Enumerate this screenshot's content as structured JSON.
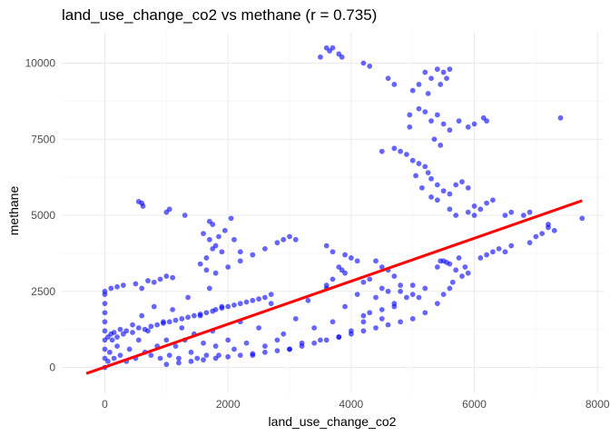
{
  "chart_data": {
    "type": "scatter",
    "title": "land_use_change_co2 vs methane (r = 0.735)",
    "xlabel": "land_use_change_co2",
    "ylabel": "methane",
    "xlim": [
      -700,
      8100
    ],
    "ylim": [
      -850,
      11000
    ],
    "x_ticks": [
      0,
      2000,
      4000,
      6000,
      8000
    ],
    "x_tick_labels": [
      "0",
      "2000",
      "4000",
      "6000",
      "8000"
    ],
    "y_ticks": [
      0,
      2500,
      5000,
      7500,
      10000
    ],
    "y_tick_labels": [
      "0",
      "2500",
      "5000",
      "7500",
      "10000"
    ],
    "grid": true,
    "point_color": "#0000ff",
    "point_opacity": 0.6,
    "trend_color": "#ff0000",
    "trend_line": {
      "x": [
        -300,
        7750
      ],
      "y": [
        -200,
        5480
      ]
    },
    "points": [
      [
        0,
        0
      ],
      [
        0,
        1200
      ],
      [
        0,
        1500
      ],
      [
        0,
        1800
      ],
      [
        0,
        2100
      ],
      [
        0,
        2400
      ],
      [
        0,
        2500
      ],
      [
        0,
        900
      ],
      [
        0,
        600
      ],
      [
        0,
        300
      ],
      [
        50,
        200
      ],
      [
        80,
        500
      ],
      [
        120,
        900
      ],
      [
        150,
        300
      ],
      [
        200,
        700
      ],
      [
        250,
        400
      ],
      [
        300,
        1100
      ],
      [
        350,
        200
      ],
      [
        400,
        600
      ],
      [
        450,
        1400
      ],
      [
        500,
        300
      ],
      [
        550,
        900
      ],
      [
        600,
        1700
      ],
      [
        650,
        500
      ],
      [
        700,
        1200
      ],
      [
        750,
        400
      ],
      [
        800,
        2000
      ],
      [
        850,
        700
      ],
      [
        900,
        300
      ],
      [
        950,
        1500
      ],
      [
        1000,
        900
      ],
      [
        1050,
        400
      ],
      [
        1100,
        1900
      ],
      [
        1150,
        700
      ],
      [
        1200,
        300
      ],
      [
        1250,
        1300
      ],
      [
        1300,
        900
      ],
      [
        1350,
        2300
      ],
      [
        1400,
        500
      ],
      [
        1450,
        1100
      ],
      [
        1500,
        300
      ],
      [
        1550,
        1700
      ],
      [
        1600,
        800
      ],
      [
        1650,
        400
      ],
      [
        1700,
        2600
      ],
      [
        1750,
        1200
      ],
      [
        1800,
        700
      ],
      [
        1850,
        400
      ],
      [
        1900,
        2000
      ],
      [
        2000,
        900
      ],
      [
        2100,
        600
      ],
      [
        2200,
        1500
      ],
      [
        2300,
        800
      ],
      [
        2400,
        400
      ],
      [
        2500,
        1300
      ],
      [
        2600,
        700
      ],
      [
        2700,
        2100
      ],
      [
        2800,
        900
      ],
      [
        2900,
        1100
      ],
      [
        3000,
        600
      ],
      [
        3100,
        1600
      ],
      [
        3200,
        800
      ],
      [
        3300,
        2200
      ],
      [
        3400,
        1300
      ],
      [
        3500,
        900
      ],
      [
        3600,
        2600
      ],
      [
        3700,
        1500
      ],
      [
        3800,
        1000
      ],
      [
        3900,
        2000
      ],
      [
        4000,
        1200
      ],
      [
        4100,
        2400
      ],
      [
        4200,
        1500
      ],
      [
        4300,
        1800
      ],
      [
        4400,
        2300
      ],
      [
        4500,
        1600
      ],
      [
        4600,
        2500
      ],
      [
        4700,
        2000
      ],
      [
        4800,
        2700
      ],
      [
        4900,
        2300
      ],
      [
        5000,
        2700
      ],
      [
        100,
        2600
      ],
      [
        300,
        2700
      ],
      [
        500,
        2750
      ],
      [
        700,
        2850
      ],
      [
        900,
        2900
      ],
      [
        1100,
        2950
      ],
      [
        600,
        2600
      ],
      [
        800,
        2800
      ],
      [
        1000,
        3000
      ],
      [
        200,
        2650
      ],
      [
        50,
        1000
      ],
      [
        100,
        1100
      ],
      [
        150,
        1150
      ],
      [
        200,
        1000
      ],
      [
        250,
        1250
      ],
      [
        350,
        1200
      ],
      [
        450,
        1150
      ],
      [
        550,
        1300
      ],
      [
        650,
        1250
      ],
      [
        750,
        1350
      ],
      [
        850,
        1400
      ],
      [
        950,
        1450
      ],
      [
        1050,
        1500
      ],
      [
        1150,
        1550
      ],
      [
        1250,
        1600
      ],
      [
        1350,
        1650
      ],
      [
        1450,
        1700
      ],
      [
        1550,
        1750
      ],
      [
        1650,
        1800
      ],
      [
        1750,
        1850
      ],
      [
        1800,
        1900
      ],
      [
        1900,
        1950
      ],
      [
        2000,
        2000
      ],
      [
        2100,
        2050
      ],
      [
        2200,
        2100
      ],
      [
        2300,
        2150
      ],
      [
        2400,
        2200
      ],
      [
        2500,
        2250
      ],
      [
        2600,
        2300
      ],
      [
        2700,
        2400
      ],
      [
        1000,
        100
      ],
      [
        1200,
        150
      ],
      [
        1400,
        200
      ],
      [
        1600,
        250
      ],
      [
        1800,
        300
      ],
      [
        2000,
        350
      ],
      [
        2200,
        400
      ],
      [
        2400,
        450
      ],
      [
        2600,
        500
      ],
      [
        2800,
        550
      ],
      [
        3000,
        600
      ],
      [
        3200,
        700
      ],
      [
        3400,
        800
      ],
      [
        3600,
        900
      ],
      [
        3800,
        1000
      ],
      [
        4000,
        1100
      ],
      [
        4200,
        1200
      ],
      [
        4400,
        1300
      ],
      [
        4600,
        1400
      ],
      [
        4800,
        1500
      ],
      [
        5000,
        1600
      ],
      [
        5200,
        1800
      ],
      [
        5400,
        2100
      ],
      [
        5500,
        2400
      ],
      [
        5600,
        2600
      ],
      [
        5650,
        2800
      ],
      [
        4200,
        1700
      ],
      [
        4500,
        1900
      ],
      [
        4700,
        2100
      ],
      [
        5100,
        2300
      ],
      [
        550,
        5450
      ],
      [
        600,
        5400
      ],
      [
        620,
        5300
      ],
      [
        1000,
        5100
      ],
      [
        1050,
        5200
      ],
      [
        1300,
        5000
      ],
      [
        1700,
        4800
      ],
      [
        1750,
        4700
      ],
      [
        2050,
        4900
      ],
      [
        1600,
        4400
      ],
      [
        1700,
        4200
      ],
      [
        1800,
        4000
      ],
      [
        1900,
        3800
      ],
      [
        1650,
        3600
      ],
      [
        1550,
        3400
      ],
      [
        1750,
        3900
      ],
      [
        1850,
        4300
      ],
      [
        1950,
        4500
      ],
      [
        2100,
        4200
      ],
      [
        2200,
        3800
      ],
      [
        1650,
        3200
      ],
      [
        1800,
        3100
      ],
      [
        2000,
        3300
      ],
      [
        2200,
        3500
      ],
      [
        2400,
        3700
      ],
      [
        2600,
        3900
      ],
      [
        2800,
        4100
      ],
      [
        3000,
        4300
      ],
      [
        3100,
        4200
      ],
      [
        2900,
        4200
      ],
      [
        3600,
        4000
      ],
      [
        3700,
        3800
      ],
      [
        3900,
        3700
      ],
      [
        4000,
        3600
      ],
      [
        4100,
        3500
      ],
      [
        3800,
        3300
      ],
      [
        3900,
        3100
      ],
      [
        3700,
        2900
      ],
      [
        3600,
        2700
      ],
      [
        3850,
        3200
      ],
      [
        4400,
        3500
      ],
      [
        4500,
        3300
      ],
      [
        4600,
        3200
      ],
      [
        4700,
        3000
      ],
      [
        4300,
        2900
      ],
      [
        4200,
        2800
      ],
      [
        4500,
        2600
      ],
      [
        4800,
        2500
      ],
      [
        5000,
        2400
      ],
      [
        5200,
        2600
      ],
      [
        5400,
        3300
      ],
      [
        5500,
        3500
      ],
      [
        5600,
        3400
      ],
      [
        5700,
        3200
      ],
      [
        5800,
        3000
      ],
      [
        5850,
        3300
      ],
      [
        5900,
        3100
      ],
      [
        5750,
        3600
      ],
      [
        5450,
        3500
      ],
      [
        5550,
        3450
      ],
      [
        6200,
        3700
      ],
      [
        6400,
        3900
      ],
      [
        6500,
        3800
      ],
      [
        6600,
        4000
      ],
      [
        6900,
        4100
      ],
      [
        7000,
        4300
      ],
      [
        7100,
        4400
      ],
      [
        7200,
        4600
      ],
      [
        7300,
        4500
      ],
      [
        7750,
        4900
      ],
      [
        6800,
        5000
      ],
      [
        6900,
        5100
      ],
      [
        7200,
        4700
      ],
      [
        6300,
        3800
      ],
      [
        6100,
        3600
      ],
      [
        5900,
        5100
      ],
      [
        6000,
        5300
      ],
      [
        6200,
        5400
      ],
      [
        6300,
        5500
      ],
      [
        6100,
        5200
      ],
      [
        3500,
        10200
      ],
      [
        3600,
        10500
      ],
      [
        3650,
        10400
      ],
      [
        3700,
        10500
      ],
      [
        3800,
        10300
      ],
      [
        3850,
        10200
      ],
      [
        4200,
        10000
      ],
      [
        4300,
        9900
      ],
      [
        4600,
        9500
      ],
      [
        4700,
        9300
      ],
      [
        5000,
        9100
      ],
      [
        5100,
        9300
      ],
      [
        5200,
        9700
      ],
      [
        5300,
        9500
      ],
      [
        5400,
        9800
      ],
      [
        5500,
        9700
      ],
      [
        5600,
        9800
      ],
      [
        5550,
        9500
      ],
      [
        5450,
        9300
      ],
      [
        5250,
        9000
      ],
      [
        4950,
        8300
      ],
      [
        5100,
        8500
      ],
      [
        5200,
        8400
      ],
      [
        5300,
        8100
      ],
      [
        5400,
        8300
      ],
      [
        5500,
        8000
      ],
      [
        5600,
        7800
      ],
      [
        5750,
        8100
      ],
      [
        5900,
        7900
      ],
      [
        6000,
        8000
      ],
      [
        6150,
        8200
      ],
      [
        6200,
        8100
      ],
      [
        7400,
        8200
      ],
      [
        4500,
        7100
      ],
      [
        4700,
        7200
      ],
      [
        4800,
        7100
      ],
      [
        4900,
        7000
      ],
      [
        5000,
        6800
      ],
      [
        5100,
        6700
      ],
      [
        5200,
        6600
      ],
      [
        5250,
        6400
      ],
      [
        5300,
        6200
      ],
      [
        5400,
        6000
      ],
      [
        5500,
        5800
      ],
      [
        5600,
        5700
      ],
      [
        5700,
        6000
      ],
      [
        5800,
        6100
      ],
      [
        5900,
        5900
      ],
      [
        5150,
        5900
      ],
      [
        5050,
        6300
      ],
      [
        5300,
        5600
      ],
      [
        5400,
        5500
      ],
      [
        5600,
        5200
      ],
      [
        5700,
        5000
      ],
      [
        6000,
        5000
      ],
      [
        6500,
        5000
      ],
      [
        6600,
        5100
      ],
      [
        4950,
        7900
      ],
      [
        5350,
        7500
      ],
      [
        5450,
        7300
      ]
    ]
  }
}
